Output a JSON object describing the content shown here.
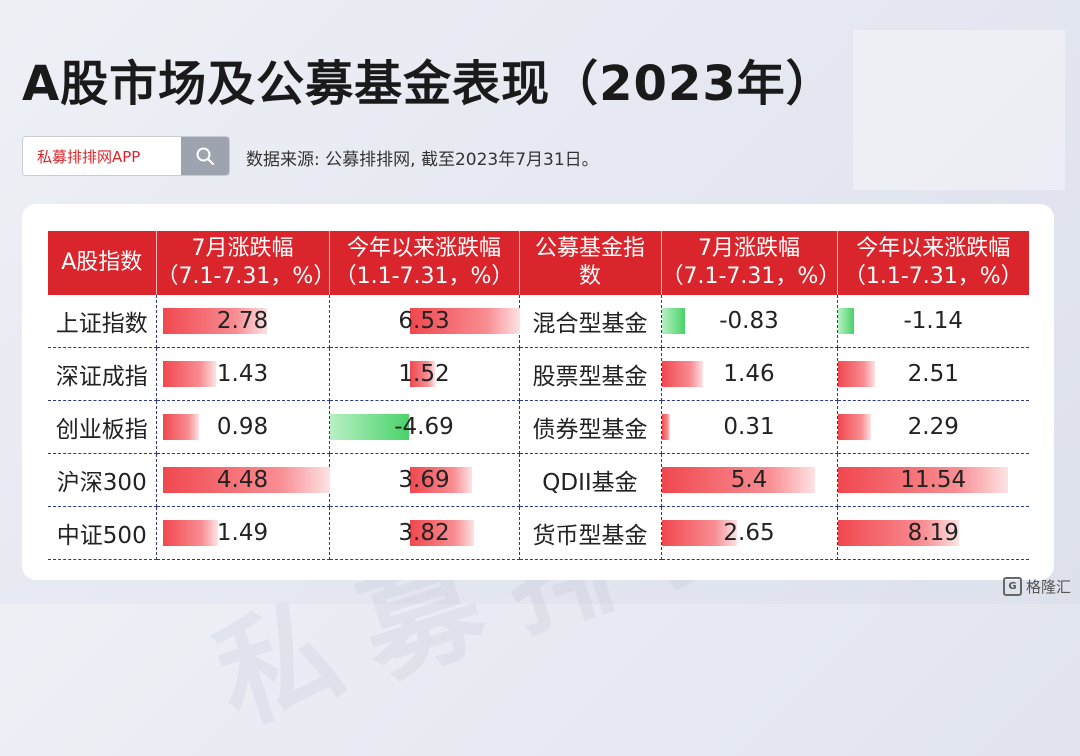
{
  "title": "A股市场及公募基金表现（2023年）",
  "search": {
    "label": "私募排排网APP"
  },
  "source": "数据来源: 公募排排网, 截至2023年7月31日。",
  "watermark": "私募排排网",
  "logo": "格隆汇",
  "colors": {
    "header": "#d9252b",
    "positive": "#f0484f",
    "negative": "#49d269"
  },
  "chart_data": {
    "type": "table",
    "columns": [
      "A股指数",
      "7月涨跌幅（7.1-7.31，%）",
      "今年以来涨跌幅（1.1-7.31，%）",
      "公募基金指数",
      "7月涨跌幅（7.1-7.31，%）",
      "今年以来涨跌幅（1.1-7.31，%）"
    ],
    "header_lines": [
      [
        "A股指数"
      ],
      [
        "7月涨跌幅",
        "（7.1-7.31，%）"
      ],
      [
        "今年以来涨跌幅",
        "（1.1-7.31，%）"
      ],
      [
        "公募基金指",
        "数"
      ],
      [
        "7月涨跌幅",
        "（7.1-7.31，%）"
      ],
      [
        "今年以来涨跌幅",
        "（1.1-7.31，%）"
      ]
    ],
    "rows": [
      {
        "index": "上证指数",
        "idx_jul": 2.78,
        "idx_ytd": 6.53,
        "fund": "混合型基金",
        "fund_jul": -0.83,
        "fund_ytd": -1.14
      },
      {
        "index": "深证成指",
        "idx_jul": 1.43,
        "idx_ytd": 1.52,
        "fund": "股票型基金",
        "fund_jul": 1.46,
        "fund_ytd": 2.51
      },
      {
        "index": "创业板指",
        "idx_jul": 0.98,
        "idx_ytd": -4.69,
        "fund": "债券型基金",
        "fund_jul": 0.31,
        "fund_ytd": 2.29
      },
      {
        "index": "沪深300",
        "idx_jul": 4.48,
        "idx_ytd": 3.69,
        "fund": "QDII基金",
        "fund_jul": 5.4,
        "fund_ytd": 11.54
      },
      {
        "index": "中证500",
        "idx_jul": 1.49,
        "idx_ytd": 3.82,
        "fund": "货币型基金",
        "fund_jul": 2.65,
        "fund_ytd": 8.19
      }
    ]
  }
}
